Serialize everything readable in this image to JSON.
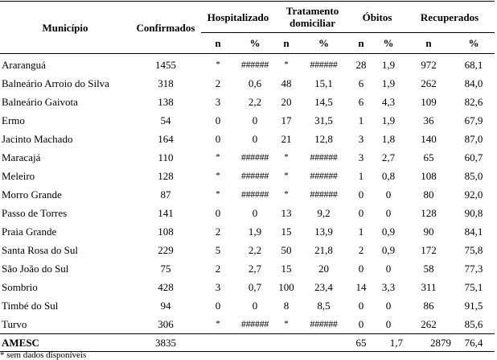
{
  "header": {
    "municipio": "Município",
    "confirmados": "Confirmados",
    "hospitalizado": "Hospitalizado",
    "tratamento_line1": "Tratamento",
    "tratamento_line2": "domiciliar",
    "obitos": "Óbitos",
    "recuperados": "Recuperados",
    "n": "n",
    "pct": "%"
  },
  "rows": [
    {
      "municipio": "Araranguá",
      "confirmados": "1455",
      "hosp_n": "*",
      "hosp_pct": "######",
      "trat_n": "*",
      "trat_pct": "######",
      "obitos_n": "28",
      "obitos_pct": "1,9",
      "rec_n": "972",
      "rec_pct": "68,1"
    },
    {
      "municipio": "Balneário Arroio do Silva",
      "confirmados": "318",
      "hosp_n": "2",
      "hosp_pct": "0,6",
      "trat_n": "48",
      "trat_pct": "15,1",
      "obitos_n": "6",
      "obitos_pct": "1,9",
      "rec_n": "262",
      "rec_pct": "84,0"
    },
    {
      "municipio": "Balneário Gaivota",
      "confirmados": "138",
      "hosp_n": "3",
      "hosp_pct": "2,2",
      "trat_n": "20",
      "trat_pct": "14,5",
      "obitos_n": "6",
      "obitos_pct": "4,3",
      "rec_n": "109",
      "rec_pct": "82,6"
    },
    {
      "municipio": "Ermo",
      "confirmados": "54",
      "hosp_n": "0",
      "hosp_pct": "0",
      "trat_n": "17",
      "trat_pct": "31,5",
      "obitos_n": "1",
      "obitos_pct": "1,9",
      "rec_n": "36",
      "rec_pct": "67,9"
    },
    {
      "municipio": "Jacinto Machado",
      "confirmados": "164",
      "hosp_n": "0",
      "hosp_pct": "0",
      "trat_n": "21",
      "trat_pct": "12,8",
      "obitos_n": "3",
      "obitos_pct": "1,8",
      "rec_n": "140",
      "rec_pct": "87,0"
    },
    {
      "municipio": "Maracajá",
      "confirmados": "110",
      "hosp_n": "*",
      "hosp_pct": "######",
      "trat_n": "*",
      "trat_pct": "######",
      "obitos_n": "3",
      "obitos_pct": "2,7",
      "rec_n": "65",
      "rec_pct": "60,7"
    },
    {
      "municipio": "Meleiro",
      "confirmados": "128",
      "hosp_n": "*",
      "hosp_pct": "######",
      "trat_n": "*",
      "trat_pct": "######",
      "obitos_n": "1",
      "obitos_pct": "0,8",
      "rec_n": "108",
      "rec_pct": "85,0"
    },
    {
      "municipio": "Morro Grande",
      "confirmados": "87",
      "hosp_n": "*",
      "hosp_pct": "######",
      "trat_n": "*",
      "trat_pct": "######",
      "obitos_n": "0",
      "obitos_pct": "0",
      "rec_n": "80",
      "rec_pct": "92,0"
    },
    {
      "municipio": "Passo de Torres",
      "confirmados": "141",
      "hosp_n": "0",
      "hosp_pct": "0",
      "trat_n": "13",
      "trat_pct": "9,2",
      "obitos_n": "0",
      "obitos_pct": "0",
      "rec_n": "128",
      "rec_pct": "90,8"
    },
    {
      "municipio": "Praia Grande",
      "confirmados": "108",
      "hosp_n": "2",
      "hosp_pct": "1,9",
      "trat_n": "15",
      "trat_pct": "13,9",
      "obitos_n": "1",
      "obitos_pct": "0,9",
      "rec_n": "90",
      "rec_pct": "84,1"
    },
    {
      "municipio": "Santa Rosa do Sul",
      "confirmados": "229",
      "hosp_n": "5",
      "hosp_pct": "2,2",
      "trat_n": "50",
      "trat_pct": "21,8",
      "obitos_n": "2",
      "obitos_pct": "0,9",
      "rec_n": "172",
      "rec_pct": "75,8"
    },
    {
      "municipio": "São João do Sul",
      "confirmados": "75",
      "hosp_n": "2",
      "hosp_pct": "2,7",
      "trat_n": "15",
      "trat_pct": "20",
      "obitos_n": "0",
      "obitos_pct": "0",
      "rec_n": "58",
      "rec_pct": "77,3"
    },
    {
      "municipio": "Sombrio",
      "confirmados": "428",
      "hosp_n": "3",
      "hosp_pct": "0,7",
      "trat_n": "100",
      "trat_pct": "23,4",
      "obitos_n": "14",
      "obitos_pct": "3,3",
      "rec_n": "311",
      "rec_pct": "75,1"
    },
    {
      "municipio": "Timbé do Sul",
      "confirmados": "94",
      "hosp_n": "0",
      "hosp_pct": "0",
      "trat_n": "8",
      "trat_pct": "8,5",
      "obitos_n": "0",
      "obitos_pct": "0",
      "rec_n": "86",
      "rec_pct": "91,5"
    },
    {
      "municipio": "Turvo",
      "confirmados": "306",
      "hosp_n": "*",
      "hosp_pct": "######",
      "trat_n": "*",
      "trat_pct": "######",
      "obitos_n": "0",
      "obitos_pct": "0",
      "rec_n": "262",
      "rec_pct": "85,6"
    }
  ],
  "total": {
    "municipio": "AMESC",
    "confirmados": "3835",
    "obitos_n": "65",
    "obitos_pct": "1,7",
    "rec_n": "2879",
    "rec_pct": "76,4"
  },
  "footnote": "* sem dados disponíveis"
}
